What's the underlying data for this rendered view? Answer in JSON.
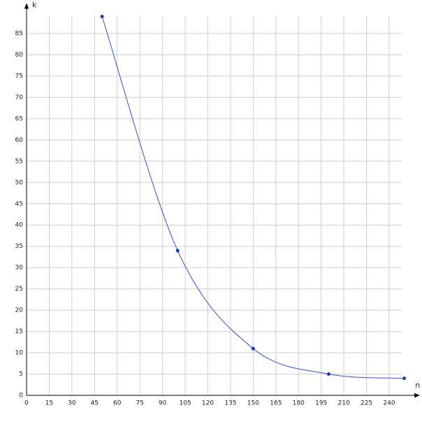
{
  "chart_data": {
    "type": "line",
    "x_label": "n",
    "y_label": "k",
    "x": [
      50,
      100,
      150,
      200,
      250
    ],
    "series": [
      {
        "color": "#3050c8",
        "values": [
          89,
          34,
          11,
          5,
          4
        ]
      }
    ],
    "xlim": [
      0,
      260
    ],
    "ylim": [
      0,
      92
    ],
    "xticks": [
      0,
      15,
      30,
      45,
      60,
      75,
      90,
      105,
      120,
      135,
      150,
      165,
      180,
      195,
      210,
      225,
      240
    ],
    "yticks": [
      0,
      5,
      10,
      15,
      20,
      25,
      30,
      35,
      40,
      45,
      50,
      55,
      60,
      65,
      70,
      75,
      80,
      85
    ],
    "grid": true,
    "smooth": true
  }
}
